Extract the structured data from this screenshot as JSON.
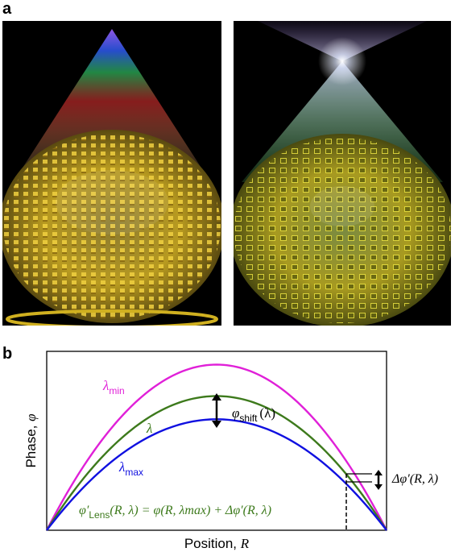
{
  "panel_a": {
    "label": "a",
    "left_image": "metalens-focusing-wavelengths-separate",
    "right_image": "metalens-achromatic-focusing"
  },
  "panel_b": {
    "label": "b",
    "ylabel_main": "Phase, ",
    "ylabel_symbol": "φ",
    "xlabel_main": "Position, ",
    "xlabel_symbol": "R",
    "annotations": {
      "lambda_min_symbol": "λ",
      "lambda_min_sub": "min",
      "lambda_symbol": "λ",
      "lambda_max_symbol": "λ",
      "lambda_max_sub": "max",
      "phi_shift_symbol": "φ",
      "phi_shift_sub": "shift",
      "phi_shift_arg": "(λ)",
      "delta_phi": "Δφ′(R, λ)",
      "lens_eq_lhs": "φ′",
      "lens_eq_sub": "Lens",
      "lens_eq_rhs": "(R, λ) = φ(R, λmax) + Δφ′(R, λ)"
    },
    "colors": {
      "lambda_min": "#e020d8",
      "lambda": "#3d7a1c",
      "lambda_max": "#1010e0"
    }
  },
  "chart_data": {
    "type": "line",
    "title": "",
    "xlabel": "Position, R",
    "ylabel": "Phase, φ",
    "x": [
      0,
      0.1,
      0.2,
      0.3,
      0.4,
      0.5,
      0.6,
      0.7,
      0.8,
      0.9,
      1.0
    ],
    "series": [
      {
        "name": "λmin",
        "color": "#e020d8",
        "values": [
          0,
          0.36,
          0.64,
          0.84,
          0.96,
          1.0,
          0.96,
          0.84,
          0.64,
          0.36,
          0
        ]
      },
      {
        "name": "λ",
        "color": "#3d7a1c",
        "values": [
          0,
          0.29,
          0.52,
          0.68,
          0.78,
          0.81,
          0.78,
          0.68,
          0.52,
          0.29,
          0
        ]
      },
      {
        "name": "λmax",
        "color": "#1010e0",
        "values": [
          0,
          0.24,
          0.43,
          0.57,
          0.65,
          0.67,
          0.65,
          0.57,
          0.43,
          0.24,
          0
        ]
      }
    ],
    "ylim": [
      0,
      1.08
    ],
    "grid": false,
    "legend": "none"
  }
}
